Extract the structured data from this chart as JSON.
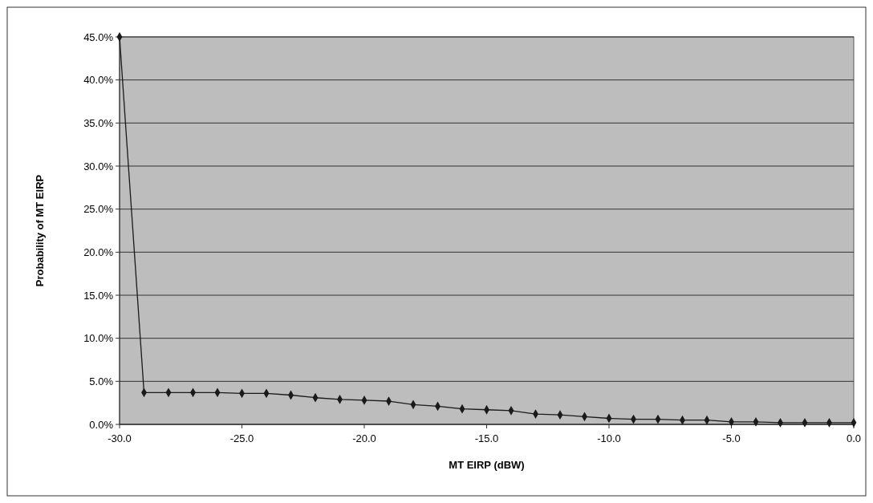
{
  "chart_data": {
    "type": "line",
    "xlabel": "MT EIRP (dBW)",
    "ylabel": "Probability of MT EIRP",
    "x": [
      -30,
      -29,
      -28,
      -27,
      -26,
      -25,
      -24,
      -23,
      -22,
      -21,
      -20,
      -19,
      -18,
      -17,
      -16,
      -15,
      -14,
      -13,
      -12,
      -11,
      -10,
      -9,
      -8,
      -7,
      -6,
      -5,
      -4,
      -3,
      -2,
      -1,
      0
    ],
    "series": [
      {
        "color": "#1a1a1a",
        "values": [
          45,
          3.7,
          3.7,
          3.7,
          3.7,
          3.6,
          3.6,
          3.4,
          3.1,
          2.9,
          2.8,
          2.7,
          2.3,
          2.1,
          1.8,
          1.7,
          1.6,
          1.2,
          1.1,
          0.9,
          0.7,
          0.6,
          0.6,
          0.5,
          0.5,
          0.3,
          0.3,
          0.2,
          0.2,
          0.2,
          0.2
        ]
      }
    ],
    "xlim": [
      -30,
      0
    ],
    "xticks": [
      {
        "value": -30,
        "label": "-30.0"
      },
      {
        "value": -25,
        "label": "-25.0"
      },
      {
        "value": -20,
        "label": "-20.0"
      },
      {
        "value": -15,
        "label": "-15.0"
      },
      {
        "value": -10,
        "label": "-10.0"
      },
      {
        "value": -5,
        "label": "-5.0"
      },
      {
        "value": 0,
        "label": "0.0"
      }
    ],
    "ylim": [
      0,
      45
    ],
    "yticks": [
      {
        "value": 0,
        "label": "0.0%"
      },
      {
        "value": 5,
        "label": "5.0%"
      },
      {
        "value": 10,
        "label": "10.0%"
      },
      {
        "value": 15,
        "label": "15.0%"
      },
      {
        "value": 20,
        "label": "20.0%"
      },
      {
        "value": 25,
        "label": "25.0%"
      },
      {
        "value": 30,
        "label": "30.0%"
      },
      {
        "value": 35,
        "label": "35.0%"
      },
      {
        "value": 40,
        "label": "40.0%"
      },
      {
        "value": 45,
        "label": "45.0%"
      }
    ],
    "grid": "y",
    "marker": "diamond",
    "line_style": "solid"
  }
}
